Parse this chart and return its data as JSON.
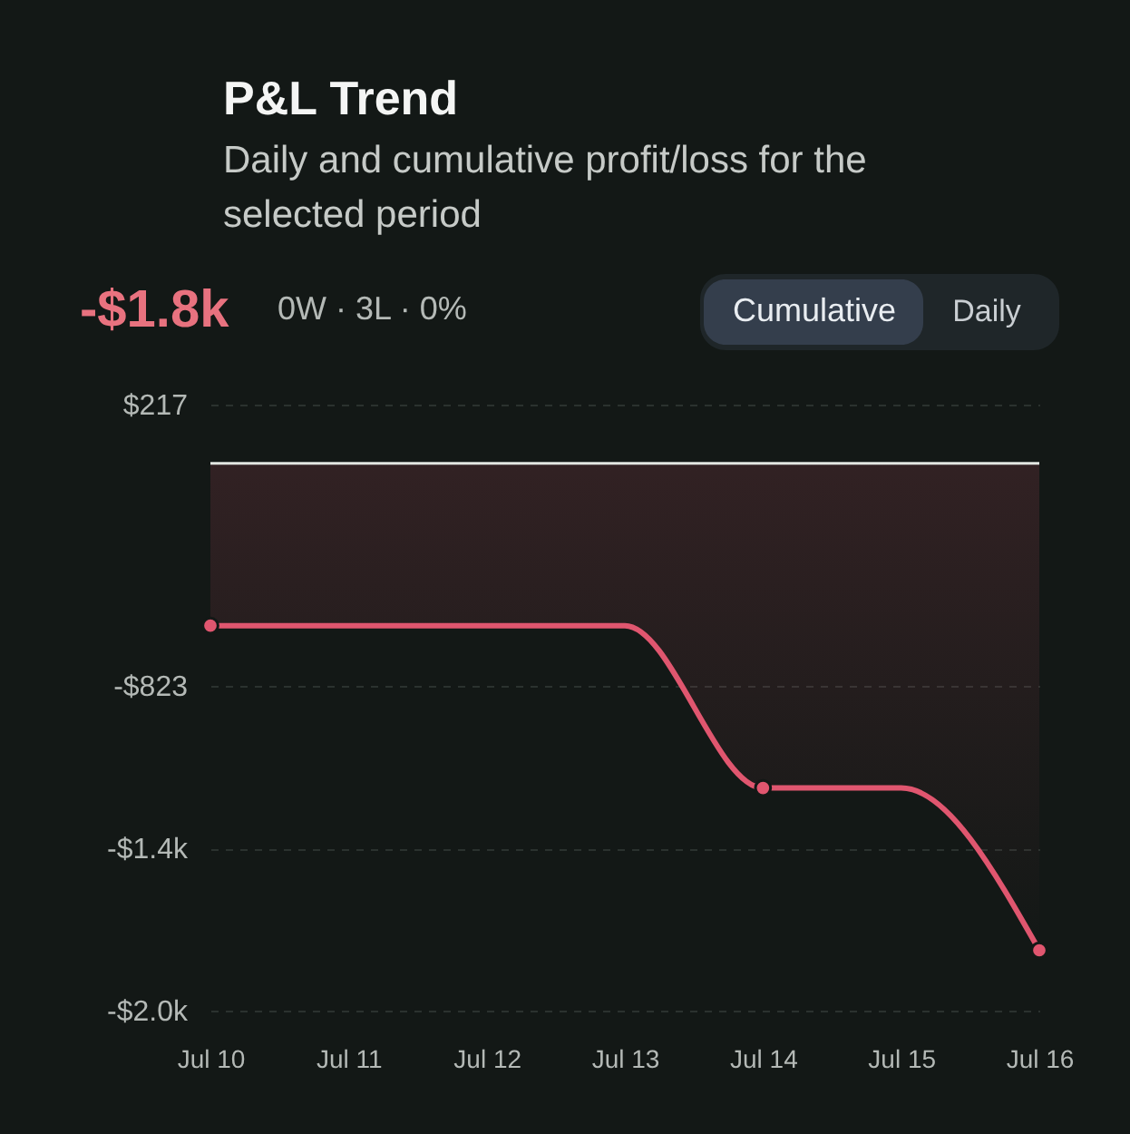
{
  "chart_data": {
    "type": "area",
    "title": "P&L Trend",
    "subtitle": "Daily and cumulative profit/loss for the selected period",
    "annotations": [
      "-$1.8k",
      "0W · 3L · 0%",
      "Cumulative",
      "Daily"
    ],
    "categories": [
      "Jul 10",
      "Jul 11",
      "Jul 12",
      "Jul 13",
      "Jul 14",
      "Jul 15",
      "Jul 16"
    ],
    "series": [
      {
        "color": "#e0566f",
        "values": [
          -600,
          -600,
          -600,
          -600,
          -1200,
          -1200,
          -1800
        ]
      },
      {
        "type": "scatter",
        "color": "#e0566f",
        "marker": "circle",
        "x": [
          "Jul 10",
          "Jul 14",
          "Jul 16"
        ],
        "values": [
          -600,
          -1200,
          -1800
        ]
      }
    ],
    "ylim": [
      -2023,
      217
    ],
    "yticks": [
      {
        "value": 217,
        "label": "$217"
      },
      {
        "value": -823,
        "label": "-$823"
      },
      {
        "value": -1423,
        "label": "-$1.4k"
      },
      {
        "value": -2023,
        "label": "-$2.0k"
      }
    ],
    "ref_lines": [
      {
        "axis": "y",
        "value": 0,
        "color": "#e2e6e2"
      }
    ],
    "grid": "y"
  }
}
